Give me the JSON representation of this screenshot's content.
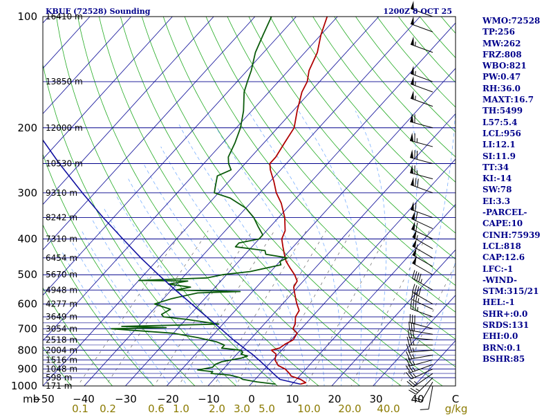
{
  "header": {
    "station": "KBUF (72528) Sounding",
    "time": "1200Z  8 OCT 25"
  },
  "colors": {
    "background": "#ffffff",
    "isobar": "#00008b",
    "isotherm": "#1f1fa0",
    "dry_adiabat": "#22aa22",
    "moist_adiabat": "#7ab0ff",
    "mixing_ratio": "#666666",
    "temperature": "#b00000",
    "dewpoint": "#0a5a0a",
    "parcel": "#1010a0",
    "index_text": "#00008b",
    "mixing_label": "#8b7a00"
  },
  "chart_data": {
    "type": "line",
    "chart_kind": "skew-T log-P thermodynamic diagram",
    "pressure_scale": "log",
    "pressure_range_mb": [
      1000,
      100
    ],
    "temperature_range_c": [
      -50,
      50
    ],
    "pressure_unit_label": "mb",
    "pressure_ticks": [
      100,
      200,
      300,
      400,
      500,
      600,
      700,
      800,
      900,
      1000
    ],
    "temperature_ticks": [
      "−50",
      "−40",
      "−30",
      "−20",
      "−10",
      "0",
      "10",
      "20",
      "30",
      "40",
      "C"
    ],
    "mixing_ratio_ticks": [
      "0.1",
      "0.2",
      "0.6",
      "1.0",
      "2.0",
      "3.0",
      "5.0",
      "10.0",
      "20.0",
      "40.0",
      "g/kg"
    ],
    "height_labels": [
      {
        "p": 100,
        "text": "16410 m"
      },
      {
        "p": 150,
        "text": "13850 m"
      },
      {
        "p": 200,
        "text": "12000 m"
      },
      {
        "p": 250,
        "text": "10530 m"
      },
      {
        "p": 300,
        "text": "9310 m"
      },
      {
        "p": 350,
        "text": "8242 m"
      },
      {
        "p": 400,
        "text": "7310 m"
      },
      {
        "p": 450,
        "text": "6454 m"
      },
      {
        "p": 500,
        "text": "5670 m"
      },
      {
        "p": 550,
        "text": "4948 m"
      },
      {
        "p": 600,
        "text": "4277 m"
      },
      {
        "p": 650,
        "text": "3649 m"
      },
      {
        "p": 700,
        "text": "3054 m"
      },
      {
        "p": 750,
        "text": "2518 m"
      },
      {
        "p": 800,
        "text": "2004 m"
      },
      {
        "p": 850,
        "text": "1516 m"
      },
      {
        "p": 900,
        "text": "1048 m"
      },
      {
        "p": 950,
        "text": "598 m"
      },
      {
        "p": 1000,
        "text": "171 m"
      }
    ],
    "series": [
      {
        "key": "temperature",
        "points": [
          [
            989,
            12
          ],
          [
            980,
            13
          ],
          [
            960,
            11
          ],
          [
            940,
            8
          ],
          [
            925,
            7
          ],
          [
            900,
            5
          ],
          [
            880,
            2.5
          ],
          [
            850,
            0.5
          ],
          [
            820,
            -0.5
          ],
          [
            800,
            -2.5
          ],
          [
            790,
            -1
          ],
          [
            770,
            -0.5
          ],
          [
            750,
            0.5
          ],
          [
            720,
            0
          ],
          [
            700,
            -2
          ],
          [
            680,
            -2.5
          ],
          [
            650,
            -4
          ],
          [
            625,
            -4.5
          ],
          [
            600,
            -6.5
          ],
          [
            580,
            -8
          ],
          [
            560,
            -9.5
          ],
          [
            540,
            -11
          ],
          [
            520,
            -11.5
          ],
          [
            500,
            -13.5
          ],
          [
            480,
            -16
          ],
          [
            460,
            -18.5
          ],
          [
            440,
            -20.5
          ],
          [
            420,
            -22.5
          ],
          [
            400,
            -24.5
          ],
          [
            380,
            -25.5
          ],
          [
            350,
            -28.5
          ],
          [
            320,
            -32.5
          ],
          [
            300,
            -36
          ],
          [
            280,
            -39
          ],
          [
            260,
            -42.5
          ],
          [
            250,
            -44
          ],
          [
            240,
            -44
          ],
          [
            220,
            -45
          ],
          [
            200,
            -46
          ],
          [
            180,
            -49
          ],
          [
            160,
            -52
          ],
          [
            150,
            -53
          ],
          [
            140,
            -55
          ],
          [
            125,
            -57
          ],
          [
            112,
            -60
          ],
          [
            100,
            -62.5
          ]
        ]
      },
      {
        "key": "dewpoint",
        "points": [
          [
            989,
            6
          ],
          [
            975,
            1
          ],
          [
            960,
            -3
          ],
          [
            950,
            -4
          ],
          [
            935,
            -7
          ],
          [
            925,
            -12
          ],
          [
            915,
            -12
          ],
          [
            905,
            -16
          ],
          [
            890,
            -13
          ],
          [
            875,
            -13
          ],
          [
            860,
            -12
          ],
          [
            850,
            -10
          ],
          [
            840,
            -8
          ],
          [
            830,
            -7
          ],
          [
            820,
            -9
          ],
          [
            810,
            -9
          ],
          [
            800,
            -10
          ],
          [
            790,
            -15
          ],
          [
            775,
            -15
          ],
          [
            760,
            -17.5
          ],
          [
            740,
            -23
          ],
          [
            720,
            -30
          ],
          [
            700,
            -46
          ],
          [
            695,
            -33
          ],
          [
            690,
            -44
          ],
          [
            680,
            -21
          ],
          [
            670,
            -25.5
          ],
          [
            660,
            -30
          ],
          [
            650,
            -36
          ],
          [
            640,
            -37
          ],
          [
            620,
            -36
          ],
          [
            600,
            -41
          ],
          [
            580,
            -38
          ],
          [
            560,
            -33
          ],
          [
            555,
            -23
          ],
          [
            550,
            -39
          ],
          [
            540,
            -36
          ],
          [
            530,
            -42
          ],
          [
            520,
            -38
          ],
          [
            518,
            -50
          ],
          [
            510,
            -34
          ],
          [
            500,
            -31
          ],
          [
            490,
            -25
          ],
          [
            470,
            -19
          ],
          [
            460,
            -20
          ],
          [
            450,
            -19
          ],
          [
            440,
            -25
          ],
          [
            430,
            -26
          ],
          [
            420,
            -34
          ],
          [
            410,
            -34
          ],
          [
            400,
            -30
          ],
          [
            390,
            -30
          ],
          [
            370,
            -33
          ],
          [
            350,
            -36
          ],
          [
            330,
            -40
          ],
          [
            310,
            -46
          ],
          [
            300,
            -51
          ],
          [
            290,
            -52
          ],
          [
            270,
            -54
          ],
          [
            260,
            -52
          ],
          [
            250,
            -54
          ],
          [
            240,
            -55.5
          ],
          [
            220,
            -57
          ],
          [
            200,
            -59
          ],
          [
            180,
            -62
          ],
          [
            160,
            -66
          ],
          [
            150,
            -67.5
          ],
          [
            140,
            -69
          ],
          [
            125,
            -72
          ],
          [
            112,
            -74
          ],
          [
            100,
            -76
          ]
        ]
      },
      {
        "key": "parcel",
        "points": [
          [
            989,
            12
          ],
          [
            960,
            6
          ],
          [
            930,
            3.5
          ],
          [
            900,
            1
          ],
          [
            860,
            -2.5
          ],
          [
            818,
            -6.5
          ],
          [
            800,
            -8.5
          ],
          [
            750,
            -14
          ],
          [
            700,
            -19.5
          ],
          [
            650,
            -25.5
          ],
          [
            600,
            -32
          ],
          [
            550,
            -39
          ],
          [
            500,
            -46.5
          ],
          [
            450,
            -54.5
          ],
          [
            400,
            -63
          ],
          [
            350,
            -72.5
          ],
          [
            300,
            -83
          ],
          [
            250,
            -95
          ],
          [
            200,
            -109
          ],
          [
            160,
            -121
          ],
          [
            130,
            -133
          ],
          [
            117,
            -140
          ]
        ]
      }
    ],
    "wind_barbs": [
      {
        "p": 1000,
        "dir": 190,
        "spd": 10
      },
      {
        "p": 975,
        "dir": 210,
        "spd": 20
      },
      {
        "p": 950,
        "dir": 225,
        "spd": 25
      },
      {
        "p": 925,
        "dir": 235,
        "spd": 25
      },
      {
        "p": 900,
        "dir": 245,
        "spd": 25
      },
      {
        "p": 875,
        "dir": 250,
        "spd": 25
      },
      {
        "p": 850,
        "dir": 255,
        "spd": 25
      },
      {
        "p": 825,
        "dir": 260,
        "spd": 25
      },
      {
        "p": 800,
        "dir": 265,
        "spd": 25
      },
      {
        "p": 775,
        "dir": 270,
        "spd": 25
      },
      {
        "p": 750,
        "dir": 275,
        "spd": 30
      },
      {
        "p": 725,
        "dir": 280,
        "spd": 30
      },
      {
        "p": 700,
        "dir": 285,
        "spd": 30
      },
      {
        "p": 650,
        "dir": 290,
        "spd": 35
      },
      {
        "p": 620,
        "dir": 295,
        "spd": 35
      },
      {
        "p": 600,
        "dir": 300,
        "spd": 40
      },
      {
        "p": 550,
        "dir": 300,
        "spd": 45
      },
      {
        "p": 500,
        "dir": 300,
        "spd": 50
      },
      {
        "p": 475,
        "dir": 300,
        "spd": 50
      },
      {
        "p": 450,
        "dir": 300,
        "spd": 55
      },
      {
        "p": 425,
        "dir": 300,
        "spd": 55
      },
      {
        "p": 400,
        "dir": 295,
        "spd": 60
      },
      {
        "p": 375,
        "dir": 295,
        "spd": 60
      },
      {
        "p": 350,
        "dir": 290,
        "spd": 60
      },
      {
        "p": 300,
        "dir": 290,
        "spd": 70
      },
      {
        "p": 275,
        "dir": 285,
        "spd": 65
      },
      {
        "p": 250,
        "dir": 285,
        "spd": 70
      },
      {
        "p": 225,
        "dir": 285,
        "spd": 65
      },
      {
        "p": 200,
        "dir": 285,
        "spd": 60
      },
      {
        "p": 175,
        "dir": 290,
        "spd": 55
      },
      {
        "p": 160,
        "dir": 290,
        "spd": 55
      },
      {
        "p": 150,
        "dir": 290,
        "spd": 55
      },
      {
        "p": 125,
        "dir": 290,
        "spd": 55
      },
      {
        "p": 110,
        "dir": 290,
        "spd": 50
      },
      {
        "p": 100,
        "dir": 290,
        "spd": 50
      }
    ]
  },
  "indices": [
    "WMO:72528",
    "TP:256",
    "MW:262",
    "FRZ:808",
    "WBO:821",
    "PW:0.47",
    "RH:36.0",
    "MAXT:16.7",
    "TH:5499",
    "L57:5.4",
    "LCL:956",
    "LI:12.1",
    "SI:11.9",
    "TT:34",
    "KI:-14",
    "SW:78",
    "EI:3.3",
    "-PARCEL-",
    "CAPE:10",
    "CINH:75939",
    "LCL:818",
    "CAP:12.6",
    "LFC:-1",
    "-WIND-",
    "STM:315/21",
    "HEL:-1",
    "SHR+:0.0",
    "SRDS:131",
    "EHI:0.0",
    "BRN:0.1",
    "BSHR:85"
  ]
}
